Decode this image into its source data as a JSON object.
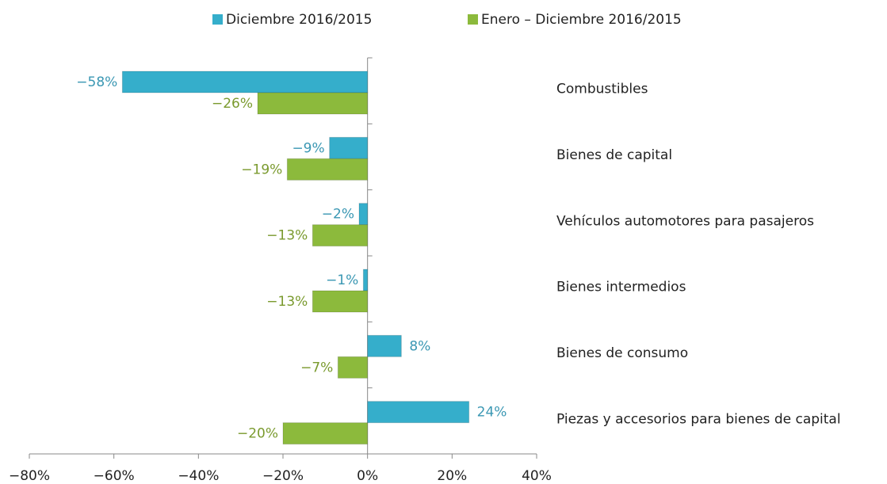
{
  "chart_data": {
    "type": "hbar",
    "categories": [
      "Combustibles",
      "Bienes de capital",
      "Vehículos automotores para pasajeros",
      "Bienes intermedios",
      "Bienes de consumo",
      "Piezas y accesorios para bienes de capital"
    ],
    "series": [
      {
        "name": "Diciembre 2016/2015",
        "color": "#35aecb",
        "values": [
          -58,
          -9,
          -2,
          -1,
          8,
          24
        ],
        "value_labels": [
          "−58%",
          "−9%",
          "−2%",
          "−1%",
          "8%",
          "24%"
        ]
      },
      {
        "name": "Enero – Diciembre 2016/2015",
        "color": "#8cba3c",
        "values": [
          -26,
          -19,
          -13,
          -13,
          -7,
          -20
        ],
        "value_labels": [
          "−26%",
          "−19%",
          "−13%",
          "−13%",
          "−7%",
          "−20%"
        ]
      }
    ],
    "xlim": [
      -80,
      40
    ],
    "xticks": [
      {
        "value": -80,
        "label": "−80%"
      },
      {
        "value": -60,
        "label": "−60%"
      },
      {
        "value": -40,
        "label": "−40%"
      },
      {
        "value": -20,
        "label": "−20%"
      },
      {
        "value": 0,
        "label": "0%"
      },
      {
        "value": 20,
        "label": "20%"
      },
      {
        "value": 40,
        "label": "40%"
      }
    ],
    "legend": "top"
  }
}
